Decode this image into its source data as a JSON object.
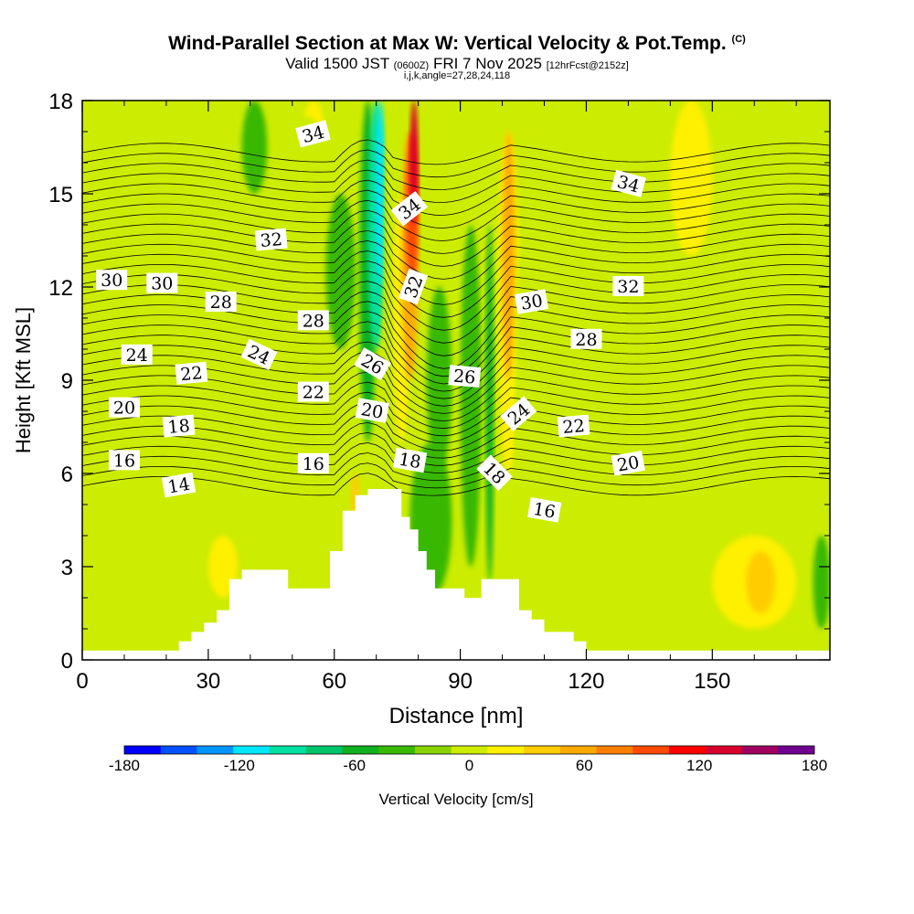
{
  "header": {
    "title": "Wind-Parallel Section at Max W: Vertical Velocity & Pot.Temp.",
    "copyright": "(C)",
    "subtitle_valid": "Valid 1500 JST",
    "subtitle_utc": "(0600Z)",
    "subtitle_date": "FRI 7 Nov 2025",
    "subtitle_fcst": "[12hrFcst@2152z]",
    "params": "i,j,k,angle=27,28,24,118"
  },
  "chart_data": {
    "type": "heatmap",
    "title": "Wind-Parallel Section at Max W: Vertical Velocity & Pot.Temp.",
    "xlabel": "Distance [nm]",
    "ylabel": "Height [Kft MSL]",
    "xlim": [
      0,
      178
    ],
    "ylim": [
      0,
      18
    ],
    "xticks": [
      0,
      30,
      60,
      90,
      120,
      150
    ],
    "yticks": [
      0,
      3,
      6,
      9,
      12,
      15,
      18
    ],
    "colorbar": {
      "label": "Vertical Velocity [cm/s]",
      "min": -180,
      "max": 180,
      "step": 20,
      "tick_labels": [
        "-180",
        "-120",
        "-60",
        "0",
        "60",
        "120",
        "180"
      ],
      "colors": [
        "#0000ff",
        "#0050ff",
        "#0095ff",
        "#00e6ff",
        "#00e0a0",
        "#00c46a",
        "#10b020",
        "#38b800",
        "#8cd200",
        "#ccec00",
        "#fff000",
        "#ffcc00",
        "#ffaa00",
        "#ff7e00",
        "#ff4a00",
        "#ff0000",
        "#d8002c",
        "#a00060",
        "#700090"
      ]
    },
    "terrain_kft": [
      [
        0,
        0.3
      ],
      [
        22,
        0.3
      ],
      [
        23,
        0.6
      ],
      [
        26,
        0.9
      ],
      [
        29,
        1.2
      ],
      [
        32,
        1.6
      ],
      [
        35,
        2.6
      ],
      [
        38,
        2.9
      ],
      [
        46,
        2.9
      ],
      [
        49,
        2.3
      ],
      [
        56,
        2.3
      ],
      [
        59,
        3.5
      ],
      [
        62,
        4.8
      ],
      [
        65,
        5.3
      ],
      [
        68,
        5.5
      ],
      [
        74,
        5.5
      ],
      [
        76,
        4.6
      ],
      [
        78,
        4.2
      ],
      [
        80,
        3.5
      ],
      [
        82,
        2.9
      ],
      [
        84,
        2.3
      ],
      [
        89,
        2.3
      ],
      [
        91,
        2.0
      ],
      [
        94,
        2.0
      ],
      [
        95,
        2.6
      ],
      [
        101,
        2.6
      ],
      [
        104,
        1.6
      ],
      [
        107,
        1.3
      ],
      [
        110,
        0.9
      ],
      [
        114,
        0.9
      ],
      [
        117,
        0.6
      ],
      [
        120,
        0.3
      ],
      [
        178,
        0.3
      ]
    ],
    "isentrope_labels": [
      {
        "text": "34",
        "x": 55,
        "y": 16.9,
        "angle": -15
      },
      {
        "text": "34",
        "x": 78,
        "y": 14.5,
        "angle": -38
      },
      {
        "text": "34",
        "x": 130,
        "y": 15.3,
        "angle": 15
      },
      {
        "text": "32",
        "x": 45,
        "y": 13.5,
        "angle": -5
      },
      {
        "text": "32",
        "x": 79,
        "y": 12.0,
        "angle": -70
      },
      {
        "text": "32",
        "x": 130,
        "y": 12.0,
        "angle": 0
      },
      {
        "text": "30",
        "x": 7,
        "y": 12.2,
        "angle": 0
      },
      {
        "text": "30",
        "x": 19,
        "y": 12.1,
        "angle": 0
      },
      {
        "text": "30",
        "x": 107,
        "y": 11.5,
        "angle": -10
      },
      {
        "text": "28",
        "x": 33,
        "y": 11.5,
        "angle": 0
      },
      {
        "text": "28",
        "x": 55,
        "y": 10.9,
        "angle": 0
      },
      {
        "text": "28",
        "x": 120,
        "y": 10.3,
        "angle": 0
      },
      {
        "text": "26",
        "x": 69,
        "y": 9.5,
        "angle": 30
      },
      {
        "text": "26",
        "x": 91,
        "y": 9.1,
        "angle": 5
      },
      {
        "text": "24",
        "x": 13,
        "y": 9.8,
        "angle": 0
      },
      {
        "text": "24",
        "x": 42,
        "y": 9.8,
        "angle": 25
      },
      {
        "text": "24",
        "x": 104,
        "y": 7.9,
        "angle": -40
      },
      {
        "text": "22",
        "x": 26,
        "y": 9.2,
        "angle": -5
      },
      {
        "text": "22",
        "x": 55,
        "y": 8.6,
        "angle": 0
      },
      {
        "text": "22",
        "x": 117,
        "y": 7.5,
        "angle": -5
      },
      {
        "text": "20",
        "x": 10,
        "y": 8.1,
        "angle": 0
      },
      {
        "text": "20",
        "x": 69,
        "y": 8.0,
        "angle": 10
      },
      {
        "text": "20",
        "x": 130,
        "y": 6.3,
        "angle": -10
      },
      {
        "text": "18",
        "x": 23,
        "y": 7.5,
        "angle": -5
      },
      {
        "text": "18",
        "x": 78,
        "y": 6.4,
        "angle": 10
      },
      {
        "text": "18",
        "x": 98,
        "y": 6.0,
        "angle": 45
      },
      {
        "text": "16",
        "x": 10,
        "y": 6.4,
        "angle": 0
      },
      {
        "text": "16",
        "x": 55,
        "y": 6.3,
        "angle": 0
      },
      {
        "text": "16",
        "x": 110,
        "y": 4.8,
        "angle": 10
      },
      {
        "text": "14",
        "x": 23,
        "y": 5.6,
        "angle": -10
      }
    ]
  },
  "colors": {
    "background_field": "#ccec00",
    "axis": "#000000",
    "terrain": "#ffffff",
    "contour": "#000000"
  }
}
